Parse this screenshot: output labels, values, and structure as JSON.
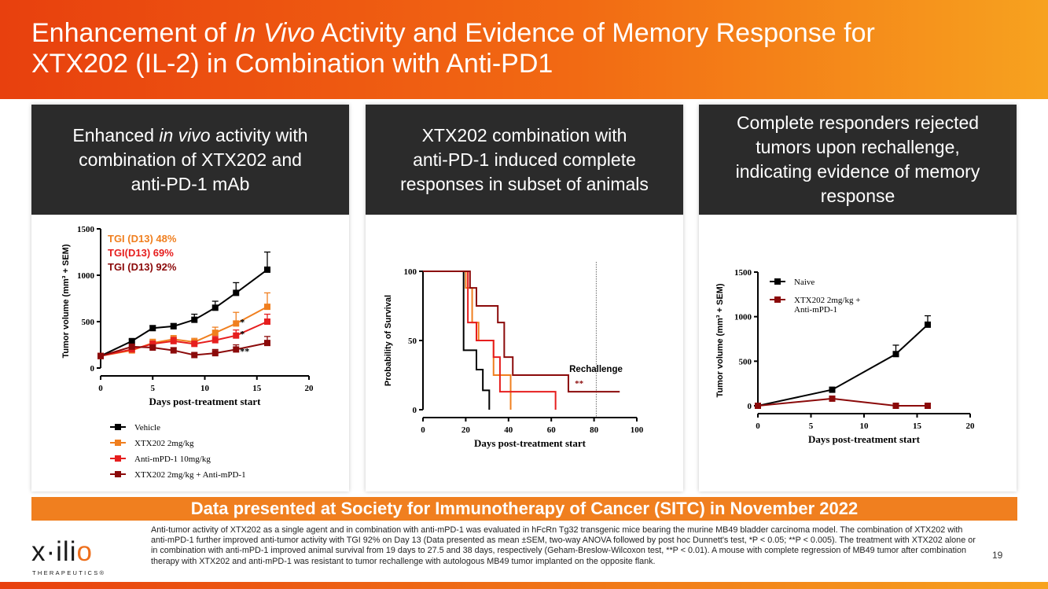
{
  "header": {
    "title_a": "Enhancement of ",
    "title_b": "In Vivo",
    "title_c": " Activity and Evidence of Memory Response for",
    "title_d": "XTX202 (IL-2) in Combination with Anti-PD1"
  },
  "panels": [
    {
      "head_a": "Enhanced ",
      "head_b": "in vivo",
      "head_c": " activity with",
      "head_d": "combination of XTX202 and",
      "head_e": "anti-PD-1 mAb"
    },
    {
      "head_a": "XTX202 combination with",
      "head_b": "anti-PD-1 induced complete",
      "head_c": "responses in subset of animals"
    },
    {
      "head_a": "Complete responders rejected",
      "head_b": "tumors upon rechallenge,",
      "head_c": "indicating evidence of memory",
      "head_d": "response"
    }
  ],
  "banner": "Data presented at Society for Immunotherapy of Cancer (SITC) in November 2022",
  "footnote": "Anti-tumor activity of XTX202 as a single agent and in combination with anti-mPD-1 was evaluated in hFcRn Tg32 transgenic mice bearing the murine MB49 bladder carcinoma model. The combination of XTX202 with anti-mPD-1 further improved anti-tumor activity with TGI 92% on Day 13 (Data presented as mean ±SEM, two-way ANOVA followed by post hoc Dunnett's test, *P < 0.05; **P < 0.005). The treatment with XTX202 alone or in combination with anti-mPD-1 improved animal survival from 19 days to 27.5 and 38 days, respectively (Geham-Breslow-Wilcoxon test, **P < 0.01). A mouse with complete regression of MB49 tumor after combination therapy with XTX202 and anti-mPD-1 was resistant to tumor rechallenge with autologous MB49 tumor implanted on the opposite flank.",
  "logo": {
    "word_a": "x·ili",
    "word_b": "o",
    "sub": "THERAPEUTICS®"
  },
  "page_number": "19",
  "colors": {
    "vehicle": "#000000",
    "xtx": "#f07f1f",
    "antipd1": "#e61e1e",
    "combo": "#8b0a0a"
  },
  "chart_data": [
    {
      "type": "line",
      "title": "",
      "xlabel": "Days post-treatment start",
      "ylabel": "Tumor volume (mm³ + SEM)",
      "xlim": [
        0,
        20
      ],
      "ylim": [
        0,
        1500
      ],
      "xticks": [
        "0",
        "5",
        "10",
        "15",
        "20"
      ],
      "yticks": [
        "0",
        "500",
        "1000",
        "1500"
      ],
      "x": [
        0,
        3,
        5,
        7,
        9,
        11,
        13,
        16
      ],
      "series": [
        {
          "name": "Vehicle",
          "values": [
            130,
            290,
            430,
            450,
            520,
            650,
            810,
            1060
          ],
          "err": [
            0,
            20,
            25,
            30,
            60,
            70,
            110,
            190
          ]
        },
        {
          "name": "XTX202 2mg/kg",
          "values": [
            130,
            190,
            270,
            310,
            280,
            380,
            480,
            660
          ],
          "err": [
            0,
            20,
            40,
            40,
            40,
            60,
            120,
            150
          ]
        },
        {
          "name": "Anti-mPD-1 10mg/kg",
          "values": [
            130,
            200,
            260,
            290,
            260,
            300,
            350,
            500
          ],
          "err": [
            0,
            20,
            30,
            40,
            30,
            40,
            60,
            80
          ]
        },
        {
          "name": "XTX202 2mg/kg + Anti-mPD-1",
          "values": [
            130,
            230,
            220,
            190,
            140,
            160,
            200,
            270
          ],
          "err": [
            0,
            20,
            30,
            30,
            20,
            40,
            50,
            70
          ]
        }
      ],
      "annotations": [
        "TGI (D13) 48%",
        "TGI(D13) 69%",
        "TGI (D13) 92%"
      ],
      "significance": [
        "*",
        "*",
        "**"
      ]
    },
    {
      "type": "line",
      "title": "",
      "xlabel": "Days post-treatment start",
      "ylabel": "Probability of Survival",
      "xlim": [
        0,
        100
      ],
      "ylim": [
        0,
        100
      ],
      "xticks": [
        "0",
        "20",
        "40",
        "60",
        "80",
        "100"
      ],
      "yticks": [
        "0",
        "50",
        "100"
      ],
      "series": [
        {
          "name": "Vehicle",
          "x": [
            0,
            19,
            19,
            25,
            25,
            28,
            28,
            31,
            31
          ],
          "values": [
            100,
            100,
            43,
            43,
            29,
            29,
            14,
            14,
            0
          ]
        },
        {
          "name": "XTX202 2mg/kg",
          "x": [
            0,
            20,
            20,
            23,
            23,
            26,
            26,
            33,
            33,
            41,
            41
          ],
          "values": [
            100,
            100,
            88,
            88,
            63,
            63,
            50,
            50,
            25,
            25,
            0
          ]
        },
        {
          "name": "Anti-mPD-1 10mg/kg",
          "x": [
            0,
            21,
            21,
            25,
            25,
            33,
            33,
            36,
            36,
            62,
            62
          ],
          "values": [
            100,
            100,
            63,
            63,
            50,
            50,
            38,
            38,
            13,
            13,
            0
          ]
        },
        {
          "name": "XTX202 2mg/kg + Anti-mPD-1",
          "x": [
            0,
            22,
            22,
            25,
            25,
            35,
            35,
            38,
            38,
            40,
            40,
            42,
            42,
            68,
            68,
            92
          ],
          "values": [
            100,
            100,
            88,
            88,
            75,
            75,
            63,
            63,
            38,
            38,
            38,
            38,
            25,
            25,
            13,
            13
          ]
        }
      ],
      "rechallenge_day": 81,
      "rechallenge_label": "Rechallenge",
      "significance": "**"
    },
    {
      "type": "line",
      "title": "",
      "xlabel": "Days post-treatment start",
      "ylabel": "Tumor volume (mm³ + SEM)",
      "xlim": [
        0,
        20
      ],
      "ylim": [
        0,
        1500
      ],
      "xticks": [
        "0",
        "5",
        "10",
        "15",
        "20"
      ],
      "yticks": [
        "0",
        "500",
        "1000",
        "1500"
      ],
      "x": [
        0,
        7,
        13,
        16
      ],
      "series": [
        {
          "name": "Naive",
          "values": [
            0,
            180,
            580,
            910
          ],
          "err": [
            0,
            0,
            100,
            100
          ]
        },
        {
          "name": "XTX202 2mg/kg + Anti-mPD-1",
          "values": [
            0,
            80,
            0,
            0
          ],
          "err": [
            0,
            0,
            0,
            0
          ]
        }
      ],
      "legend": [
        "Naive",
        "XTX202 2mg/kg +",
        "Anti-mPD-1"
      ]
    }
  ]
}
